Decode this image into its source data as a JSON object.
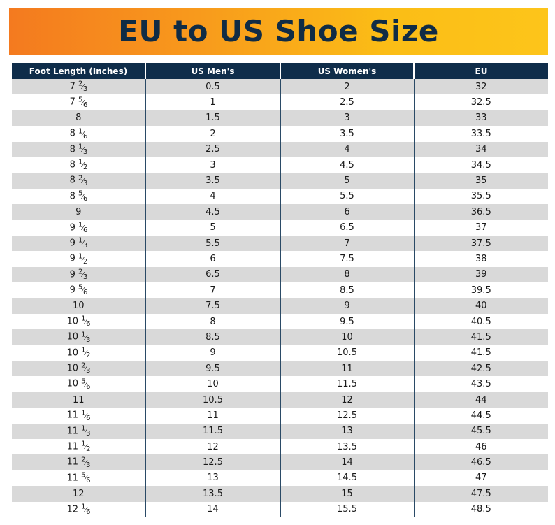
{
  "title": "EU to US Shoe Size",
  "columns": [
    "Foot Length (Inches)",
    "US Men's",
    "US Women's",
    "EU"
  ],
  "rows": [
    {
      "whole": "7",
      "num": "2",
      "den": "3",
      "men": "0.5",
      "women": "2",
      "eu": "32"
    },
    {
      "whole": "7",
      "num": "5",
      "den": "6",
      "men": "1",
      "women": "2.5",
      "eu": "32.5"
    },
    {
      "whole": "8",
      "num": "",
      "den": "",
      "men": "1.5",
      "women": "3",
      "eu": "33"
    },
    {
      "whole": "8",
      "num": "1",
      "den": "6",
      "men": "2",
      "women": "3.5",
      "eu": "33.5"
    },
    {
      "whole": "8",
      "num": "1",
      "den": "3",
      "men": "2.5",
      "women": "4",
      "eu": "34"
    },
    {
      "whole": "8",
      "num": "1",
      "den": "2",
      "men": "3",
      "women": "4.5",
      "eu": "34.5"
    },
    {
      "whole": "8",
      "num": "2",
      "den": "3",
      "men": "3.5",
      "women": "5",
      "eu": "35"
    },
    {
      "whole": "8",
      "num": "5",
      "den": "6",
      "men": "4",
      "women": "5.5",
      "eu": "35.5"
    },
    {
      "whole": "9",
      "num": "",
      "den": "",
      "men": "4.5",
      "women": "6",
      "eu": "36.5"
    },
    {
      "whole": "9",
      "num": "1",
      "den": "6",
      "men": "5",
      "women": "6.5",
      "eu": "37"
    },
    {
      "whole": "9",
      "num": "1",
      "den": "3",
      "men": "5.5",
      "women": "7",
      "eu": "37.5"
    },
    {
      "whole": "9",
      "num": "1",
      "den": "2",
      "men": "6",
      "women": "7.5",
      "eu": "38"
    },
    {
      "whole": "9",
      "num": "2",
      "den": "3",
      "men": "6.5",
      "women": "8",
      "eu": "39"
    },
    {
      "whole": "9",
      "num": "5",
      "den": "6",
      "men": "7",
      "women": "8.5",
      "eu": "39.5"
    },
    {
      "whole": "10",
      "num": "",
      "den": "",
      "men": "7.5",
      "women": "9",
      "eu": "40"
    },
    {
      "whole": "10",
      "num": "1",
      "den": "6",
      "men": "8",
      "women": "9.5",
      "eu": "40.5"
    },
    {
      "whole": "10",
      "num": "1",
      "den": "3",
      "men": "8.5",
      "women": "10",
      "eu": "41.5"
    },
    {
      "whole": "10",
      "num": "1",
      "den": "2",
      "men": "9",
      "women": "10.5",
      "eu": "41.5"
    },
    {
      "whole": "10",
      "num": "2",
      "den": "3",
      "men": "9.5",
      "women": "11",
      "eu": "42.5"
    },
    {
      "whole": "10",
      "num": "5",
      "den": "6",
      "men": "10",
      "women": "11.5",
      "eu": "43.5"
    },
    {
      "whole": "11",
      "num": "",
      "den": "",
      "men": "10.5",
      "women": "12",
      "eu": "44"
    },
    {
      "whole": "11",
      "num": "1",
      "den": "6",
      "men": "11",
      "women": "12.5",
      "eu": "44.5"
    },
    {
      "whole": "11",
      "num": "1",
      "den": "3",
      "men": "11.5",
      "women": "13",
      "eu": "45.5"
    },
    {
      "whole": "11",
      "num": "1",
      "den": "2",
      "men": "12",
      "women": "13.5",
      "eu": "46"
    },
    {
      "whole": "11",
      "num": "2",
      "den": "3",
      "men": "12.5",
      "women": "14",
      "eu": "46.5"
    },
    {
      "whole": "11",
      "num": "5",
      "den": "6",
      "men": "13",
      "women": "14.5",
      "eu": "47"
    },
    {
      "whole": "12",
      "num": "",
      "den": "",
      "men": "13.5",
      "women": "15",
      "eu": "47.5"
    },
    {
      "whole": "12",
      "num": "1",
      "den": "6",
      "men": "14",
      "women": "15.5",
      "eu": "48.5"
    }
  ]
}
